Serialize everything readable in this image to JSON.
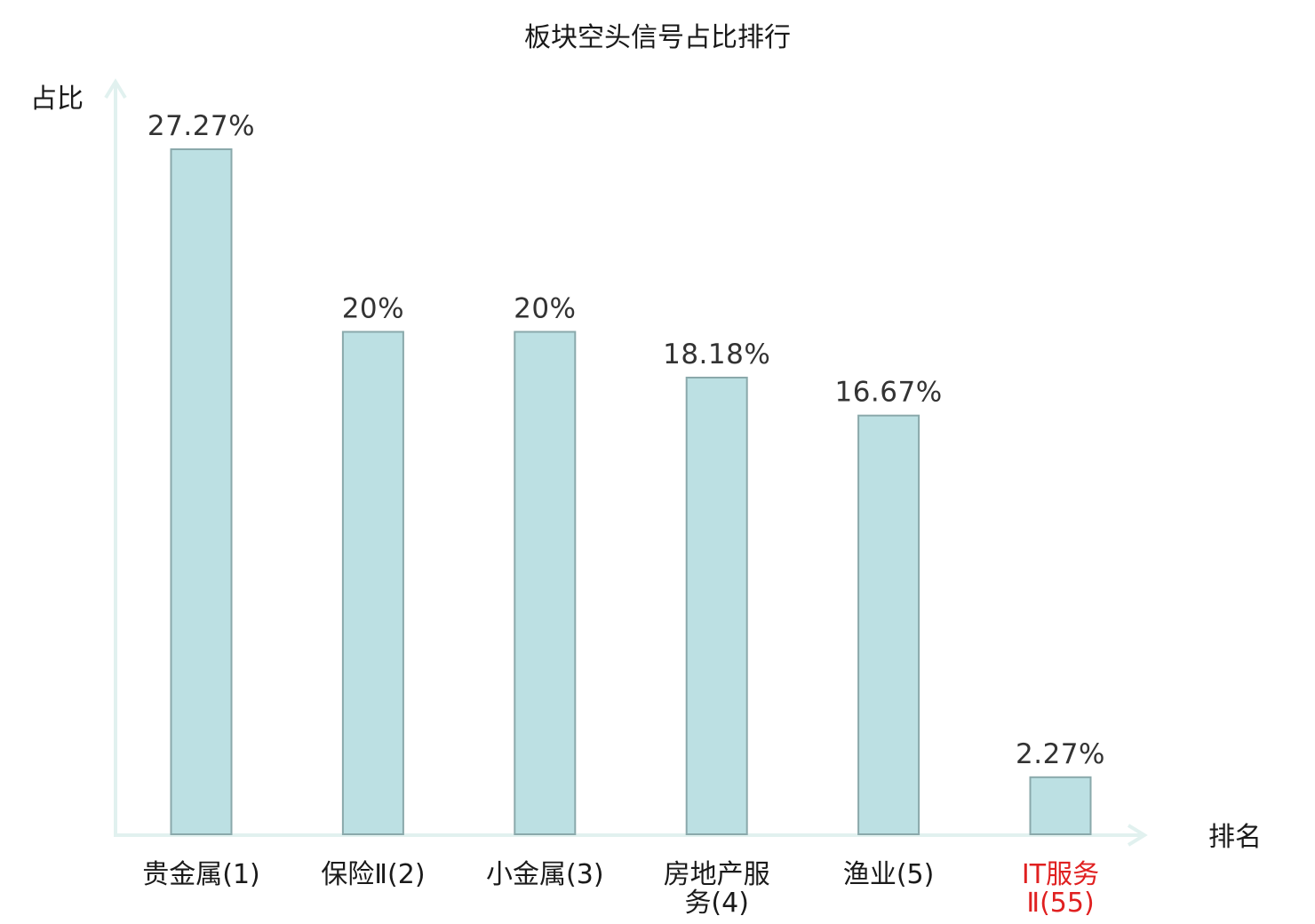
{
  "chart_data": {
    "type": "bar",
    "title": "板块空头信号占比排行",
    "ylabel": "占比",
    "xlabel": "排名",
    "categories": [
      [
        "贵金属(1)"
      ],
      [
        "保险Ⅱ(2)"
      ],
      [
        "小金属(3)"
      ],
      [
        "房地产服",
        "务(4)"
      ],
      [
        "渔业(5)"
      ],
      [
        "IT服务",
        "Ⅱ(55)"
      ]
    ],
    "values": [
      27.27,
      20,
      20,
      18.18,
      16.67,
      2.27
    ],
    "value_labels": [
      "27.27%",
      "20%",
      "20%",
      "18.18%",
      "16.67%",
      "2.27%"
    ],
    "highlight_index": 5,
    "ylim": [
      0,
      30
    ],
    "grid": false,
    "colors": {
      "bar_fill": "#bce0e3",
      "bar_stroke": "#8aa9ab",
      "axis": "#e1f1ef",
      "label_normal": "#1a1a1a",
      "label_highlight": "#e02020",
      "value_label": "#333333"
    }
  }
}
